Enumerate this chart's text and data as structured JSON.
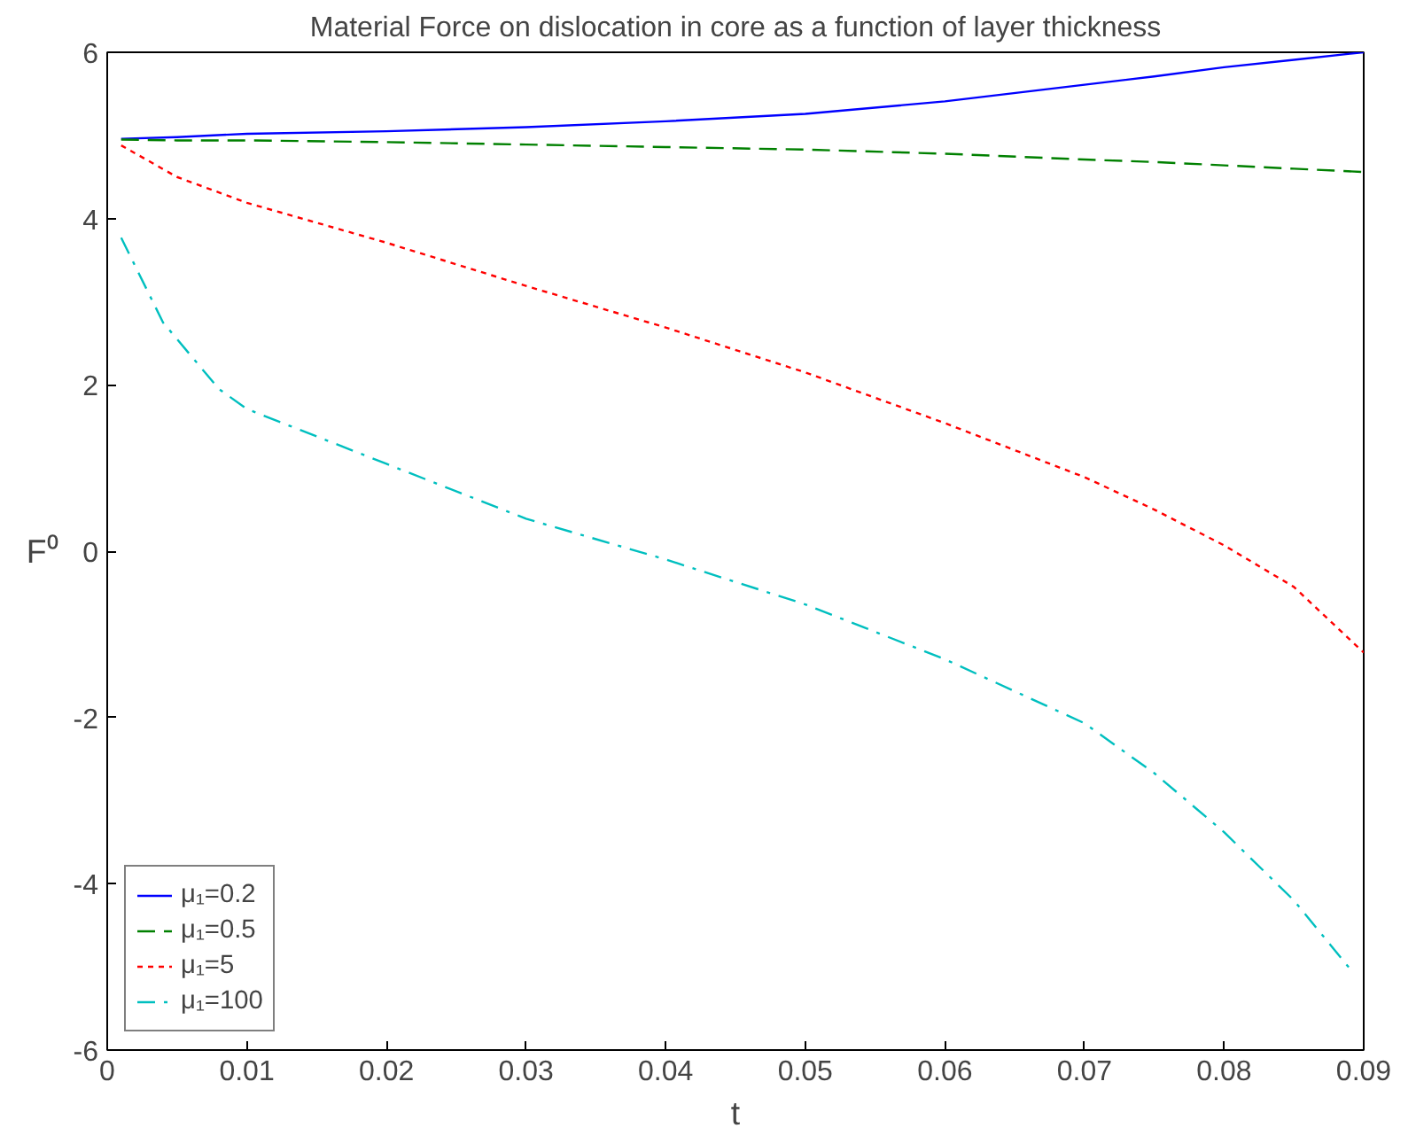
{
  "chart_data": {
    "type": "line",
    "title": "Material Force on dislocation in core as a function of layer thickness",
    "xlabel": "t",
    "ylabel": "F⁰",
    "x": [
      0.001,
      0.005,
      0.01,
      0.02,
      0.03,
      0.04,
      0.05,
      0.06,
      0.07,
      0.075,
      0.08,
      0.085,
      0.09
    ],
    "series": [
      {
        "name": "μ₁=0.2",
        "color": "#0000ff",
        "line_style": "solid",
        "values": [
          4.96,
          4.98,
          5.02,
          5.05,
          5.1,
          5.17,
          5.26,
          5.41,
          5.61,
          5.71,
          5.82,
          5.91,
          6.0
        ]
      },
      {
        "name": "μ₁=0.5",
        "color": "#008000",
        "line_style": "dashed",
        "values": [
          4.95,
          4.94,
          4.94,
          4.92,
          4.89,
          4.86,
          4.83,
          4.78,
          4.71,
          4.68,
          4.64,
          4.6,
          4.56
        ]
      },
      {
        "name": "μ₁=5",
        "color": "#ff0000",
        "line_style": "dotted",
        "values": [
          4.88,
          4.5,
          4.19,
          3.71,
          3.19,
          2.69,
          2.15,
          1.54,
          0.89,
          0.5,
          0.07,
          -0.43,
          -1.22
        ]
      },
      {
        "name": "μ₁=100",
        "color": "#00bfbf",
        "line_style": "dashdot",
        "x": [
          0.001,
          0.004,
          0.008,
          0.01,
          0.02,
          0.03,
          0.04,
          0.05,
          0.06,
          0.07,
          0.075,
          0.08,
          0.085,
          0.089
        ],
        "values": [
          3.77,
          2.75,
          1.95,
          1.71,
          1.05,
          0.39,
          -0.1,
          -0.64,
          -1.3,
          -2.07,
          -2.67,
          -3.38,
          -4.2,
          -5.02
        ]
      }
    ],
    "xlim": [
      0,
      0.09
    ],
    "xticks": [
      0,
      0.01,
      0.02,
      0.03,
      0.04,
      0.05,
      0.06,
      0.07,
      0.08,
      0.09
    ],
    "ylim": [
      -6,
      6
    ],
    "yticks": [
      -6,
      -4,
      -2,
      0,
      2,
      4,
      6
    ],
    "grid": false,
    "legend": "bottom left"
  }
}
